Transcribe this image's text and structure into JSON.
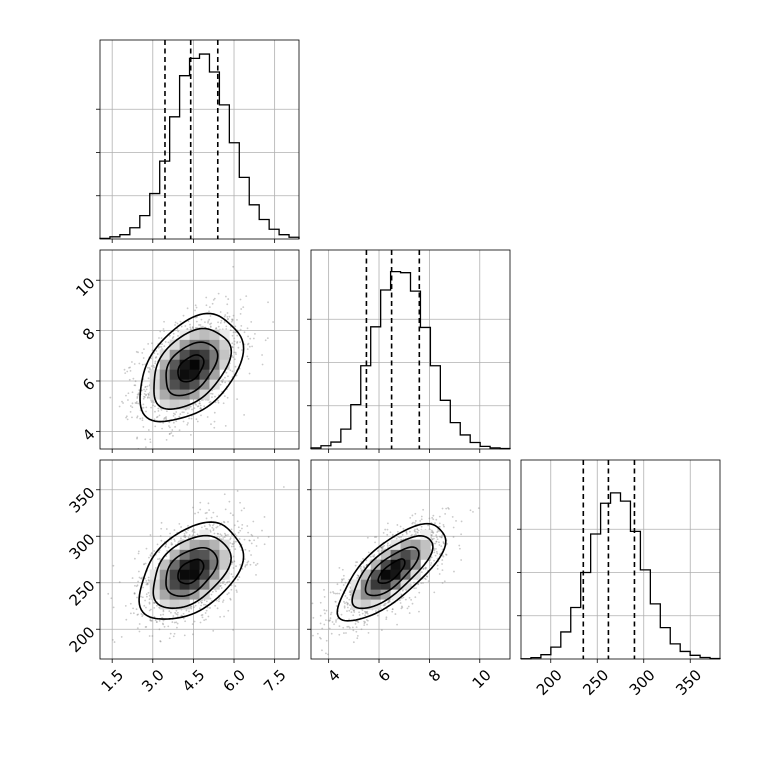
{
  "chart_data": {
    "type": "corner",
    "variables": [
      {
        "id": "p1",
        "range": [
          1.05,
          8.4
        ],
        "ticks": [
          "1.5",
          "3.0",
          "4.5",
          "6.0",
          "7.5"
        ],
        "tick_values": [
          1.5,
          3.0,
          4.5,
          6.0,
          7.5
        ],
        "quantiles": [
          3.45,
          4.4,
          5.4
        ],
        "hist_bin_width": 0.3675,
        "hist_counts": [
          3,
          10,
          20,
          52,
          108,
          210,
          360,
          565,
          755,
          835,
          855,
          772,
          620,
          445,
          285,
          158,
          90,
          45,
          20,
          8
        ]
      },
      {
        "id": "p2",
        "range": [
          3.3,
          11.2
        ],
        "ticks": [
          "4",
          "6",
          "8",
          "10"
        ],
        "tick_values": [
          4,
          6,
          8,
          10
        ],
        "quantiles": [
          5.5,
          6.5,
          7.6
        ],
        "hist_bin_width": 0.395,
        "hist_counts": [
          5,
          15,
          32,
          92,
          205,
          385,
          565,
          735,
          820,
          815,
          730,
          562,
          385,
          225,
          122,
          65,
          30,
          12,
          5,
          2
        ]
      },
      {
        "id": "p3",
        "range": [
          168,
          382
        ],
        "ticks": [
          "200",
          "250",
          "300",
          "350"
        ],
        "tick_values": [
          200,
          250,
          300,
          350
        ],
        "quantiles": [
          235,
          262,
          290
        ],
        "hist_bin_width": 10.7,
        "hist_counts": [
          1,
          6,
          20,
          55,
          125,
          238,
          400,
          578,
          720,
          768,
          730,
          590,
          412,
          255,
          145,
          70,
          35,
          17,
          7,
          2
        ]
      }
    ],
    "hist_ylim": [
      0,
      920
    ],
    "hist_y_ticks": [
      200,
      400,
      600
    ],
    "pairs": [
      {
        "x": "p1",
        "y": "p2",
        "center": [
          4.4,
          6.5
        ],
        "sigma": [
          0.95,
          1.06
        ],
        "rho": 0.42,
        "contour_sigmas": [
          0.5,
          1.0,
          1.5,
          2.0
        ],
        "inner_max": [
          4.75,
          6.75
        ]
      },
      {
        "x": "p1",
        "y": "p3",
        "center": [
          4.4,
          262
        ],
        "sigma": [
          0.95,
          26
        ],
        "rho": 0.42,
        "contour_sigmas": [
          0.5,
          1.0,
          1.5,
          2.0
        ],
        "inner_max": [
          4.45,
          263
        ]
      },
      {
        "x": "p2",
        "y": "p3",
        "center": [
          6.5,
          262
        ],
        "sigma": [
          1.06,
          26
        ],
        "rho": 0.73,
        "contour_sigmas": [
          0.5,
          1.0,
          1.5,
          2.0
        ],
        "inner_max": [
          6.6,
          260
        ]
      }
    ],
    "grid": true,
    "colors": {
      "line": "#000000",
      "scatter": "#8a8a8a",
      "density": "#000000"
    }
  }
}
